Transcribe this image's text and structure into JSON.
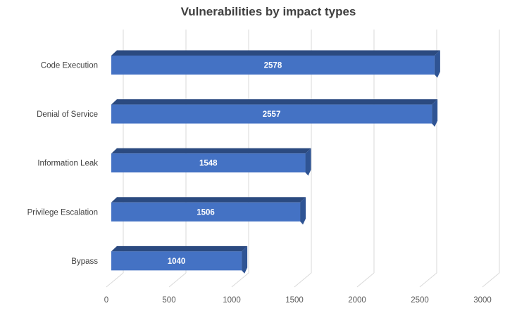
{
  "chart_data": {
    "type": "bar",
    "orientation": "horizontal",
    "style": "3d-bar",
    "title": "Vulnerabilities by impact types",
    "categories": [
      "Code Execution",
      "Denial of Service",
      "Information Leak",
      "Privilege Escalation",
      "Bypass"
    ],
    "values": [
      2578,
      2557,
      1548,
      1506,
      1040
    ],
    "data_labels": [
      "2578",
      "2557",
      "1548",
      "1506",
      "1040"
    ],
    "x_ticks": [
      0,
      500,
      1000,
      1500,
      2000,
      2500,
      3000
    ],
    "xlim": [
      0,
      3000
    ],
    "gridline_interval": 500,
    "xlabel": "",
    "ylabel": "",
    "grid": true,
    "legend": false,
    "colors": {
      "bar_face": "#4472C4",
      "bar_top": "#2B4A80",
      "bar_side": "#2F5494",
      "gridline": "#D9D9D9",
      "title_text": "#404040",
      "category_text": "#404040",
      "tick_text": "#595959",
      "value_text": "#FFFFFF",
      "background": "#FFFFFF"
    }
  }
}
